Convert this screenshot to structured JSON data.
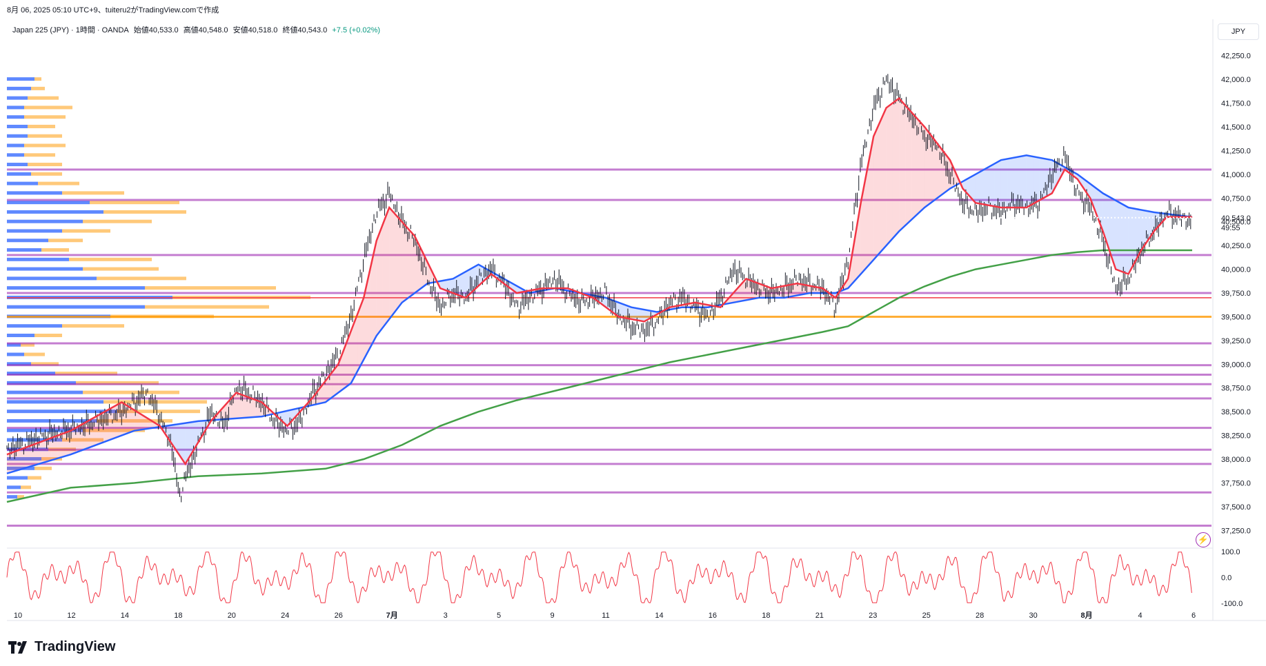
{
  "header": {
    "created_line": "8月 06, 2025 05:10 UTC+9、tuiteru2がTradingView.comで作成",
    "legend": {
      "symbol": "Japan 225 (JPY) · 1時間 · OANDA",
      "open": "始値40,533.0",
      "high": "高値40,548.0",
      "low": "安値40,518.0",
      "close": "終値40,543.0",
      "change": "+7.5 (+0.02%)"
    },
    "currency": "JPY"
  },
  "brand": {
    "name": "TradingView"
  },
  "price_badge": {
    "price": "40,543.0",
    "countdown": "49:55"
  },
  "colors": {
    "fast_ma": "#f23645",
    "mid_ma": "#2962ff",
    "slow_ma": "#43a047",
    "sr_line": "#9c27b0",
    "orange_line": "#ff9800",
    "red_line": "#f23645",
    "vp_up": "#2962ff",
    "vp_down": "#ffb74d",
    "oscillator": "#f23645"
  },
  "chart_data": {
    "type": "line",
    "title": "",
    "x_ticks": [
      "10",
      "12",
      "14",
      "18",
      "20",
      "24",
      "26",
      "7月",
      "3",
      "5",
      "9",
      "11",
      "14",
      "16",
      "18",
      "21",
      "23",
      "25",
      "28",
      "30",
      "8月",
      "4",
      "6"
    ],
    "y_ticks": [
      "42,250.0",
      "42,000.0",
      "41,750.0",
      "41,500.0",
      "41,250.0",
      "41,000.0",
      "40,750.0",
      "40,500.0",
      "40,250.0",
      "40,000.0",
      "39,750.0",
      "39,500.0",
      "39,250.0",
      "39,000.0",
      "38,750.0",
      "38,500.0",
      "38,250.0",
      "38,000.0",
      "37,750.0",
      "37,500.0",
      "37,250.0"
    ],
    "ylim": [
      37100,
      42400
    ],
    "price_path": [
      [
        0,
        38100
      ],
      [
        3,
        38250
      ],
      [
        6,
        38350
      ],
      [
        9,
        38500
      ],
      [
        11,
        38700
      ],
      [
        12,
        38450
      ],
      [
        13,
        38100
      ],
      [
        13.5,
        37600
      ],
      [
        14,
        37800
      ],
      [
        15,
        38150
      ],
      [
        16,
        38500
      ],
      [
        17,
        38350
      ],
      [
        18,
        38750
      ],
      [
        19,
        38700
      ],
      [
        20,
        38600
      ],
      [
        21,
        38400
      ],
      [
        22,
        38300
      ],
      [
        23,
        38400
      ],
      [
        24,
        38700
      ],
      [
        25,
        38900
      ],
      [
        26,
        39100
      ],
      [
        27,
        39500
      ],
      [
        28,
        40100
      ],
      [
        29,
        40600
      ],
      [
        30,
        40800
      ],
      [
        31,
        40500
      ],
      [
        32,
        40300
      ],
      [
        33,
        39900
      ],
      [
        34,
        39600
      ],
      [
        35,
        39750
      ],
      [
        36,
        39700
      ],
      [
        37,
        39900
      ],
      [
        38,
        40000
      ],
      [
        39,
        39850
      ],
      [
        40,
        39600
      ],
      [
        41,
        39700
      ],
      [
        42,
        39800
      ],
      [
        43,
        39900
      ],
      [
        44,
        39750
      ],
      [
        45,
        39650
      ],
      [
        46,
        39700
      ],
      [
        47,
        39750
      ],
      [
        48,
        39500
      ],
      [
        49,
        39400
      ],
      [
        50,
        39350
      ],
      [
        51,
        39450
      ],
      [
        52,
        39650
      ],
      [
        53,
        39700
      ],
      [
        54,
        39600
      ],
      [
        55,
        39500
      ],
      [
        56,
        39700
      ],
      [
        57,
        40000
      ],
      [
        58,
        39900
      ],
      [
        59,
        39800
      ],
      [
        60,
        39750
      ],
      [
        61,
        39800
      ],
      [
        62,
        39900
      ],
      [
        63,
        39850
      ],
      [
        64,
        39800
      ],
      [
        65,
        39600
      ],
      [
        66,
        40100
      ],
      [
        67,
        41100
      ],
      [
        68,
        41700
      ],
      [
        69,
        42000
      ],
      [
        70,
        41800
      ],
      [
        71,
        41600
      ],
      [
        72,
        41400
      ],
      [
        73,
        41300
      ],
      [
        74,
        41000
      ],
      [
        75,
        40700
      ],
      [
        76,
        40600
      ],
      [
        77,
        40650
      ],
      [
        78,
        40600
      ],
      [
        79,
        40700
      ],
      [
        80,
        40650
      ],
      [
        81,
        40700
      ],
      [
        82,
        41000
      ],
      [
        83,
        41200
      ],
      [
        84,
        40800
      ],
      [
        85,
        40650
      ],
      [
        86,
        40300
      ],
      [
        87,
        39800
      ],
      [
        88,
        39900
      ],
      [
        89,
        40200
      ],
      [
        90,
        40400
      ],
      [
        91,
        40600
      ],
      [
        92,
        40550
      ],
      [
        93,
        40500
      ]
    ],
    "series": [
      {
        "values": [
          [
            0,
            38050
          ],
          [
            5,
            38300
          ],
          [
            9,
            38600
          ],
          [
            12,
            38350
          ],
          [
            14,
            37950
          ],
          [
            16,
            38400
          ],
          [
            18,
            38700
          ],
          [
            20,
            38600
          ],
          [
            22,
            38350
          ],
          [
            24,
            38650
          ],
          [
            26,
            39000
          ],
          [
            28,
            39700
          ],
          [
            29,
            40300
          ],
          [
            30,
            40650
          ],
          [
            32,
            40350
          ],
          [
            34,
            39800
          ],
          [
            36,
            39700
          ],
          [
            38,
            39950
          ],
          [
            40,
            39750
          ],
          [
            42,
            39800
          ],
          [
            44,
            39800
          ],
          [
            46,
            39700
          ],
          [
            48,
            39500
          ],
          [
            50,
            39450
          ],
          [
            52,
            39600
          ],
          [
            54,
            39650
          ],
          [
            56,
            39600
          ],
          [
            58,
            39900
          ],
          [
            60,
            39800
          ],
          [
            62,
            39850
          ],
          [
            64,
            39800
          ],
          [
            65,
            39700
          ],
          [
            66,
            39900
          ],
          [
            67,
            40700
          ],
          [
            68,
            41400
          ],
          [
            69,
            41700
          ],
          [
            70,
            41800
          ],
          [
            72,
            41500
          ],
          [
            74,
            41150
          ],
          [
            75,
            40850
          ],
          [
            76,
            40700
          ],
          [
            78,
            40650
          ],
          [
            80,
            40650
          ],
          [
            82,
            40800
          ],
          [
            83,
            41050
          ],
          [
            84,
            40950
          ],
          [
            85,
            40750
          ],
          [
            86,
            40400
          ],
          [
            87,
            40000
          ],
          [
            88,
            39950
          ],
          [
            89,
            40200
          ],
          [
            90,
            40400
          ],
          [
            91,
            40550
          ],
          [
            93,
            40550
          ]
        ]
      },
      {
        "values": [
          [
            0,
            37850
          ],
          [
            5,
            38050
          ],
          [
            10,
            38300
          ],
          [
            15,
            38400
          ],
          [
            20,
            38450
          ],
          [
            25,
            38600
          ],
          [
            27,
            38800
          ],
          [
            29,
            39300
          ],
          [
            31,
            39650
          ],
          [
            33,
            39850
          ],
          [
            35,
            39900
          ],
          [
            37,
            40050
          ],
          [
            39,
            39900
          ],
          [
            41,
            39750
          ],
          [
            43,
            39800
          ],
          [
            45,
            39750
          ],
          [
            47,
            39700
          ],
          [
            49,
            39600
          ],
          [
            51,
            39550
          ],
          [
            53,
            39600
          ],
          [
            55,
            39600
          ],
          [
            57,
            39650
          ],
          [
            59,
            39700
          ],
          [
            61,
            39700
          ],
          [
            63,
            39750
          ],
          [
            65,
            39750
          ],
          [
            66,
            39800
          ],
          [
            68,
            40100
          ],
          [
            70,
            40400
          ],
          [
            72,
            40650
          ],
          [
            74,
            40850
          ],
          [
            76,
            41000
          ],
          [
            78,
            41150
          ],
          [
            80,
            41200
          ],
          [
            82,
            41150
          ],
          [
            84,
            41000
          ],
          [
            86,
            40800
          ],
          [
            88,
            40650
          ],
          [
            90,
            40600
          ],
          [
            93,
            40550
          ]
        ]
      },
      {
        "values": [
          [
            0,
            37550
          ],
          [
            5,
            37700
          ],
          [
            10,
            37750
          ],
          [
            15,
            37820
          ],
          [
            20,
            37850
          ],
          [
            25,
            37900
          ],
          [
            28,
            38000
          ],
          [
            31,
            38150
          ],
          [
            34,
            38350
          ],
          [
            37,
            38500
          ],
          [
            40,
            38620
          ],
          [
            43,
            38720
          ],
          [
            46,
            38820
          ],
          [
            49,
            38920
          ],
          [
            52,
            39020
          ],
          [
            55,
            39100
          ],
          [
            58,
            39180
          ],
          [
            61,
            39260
          ],
          [
            64,
            39340
          ],
          [
            66,
            39400
          ],
          [
            68,
            39550
          ],
          [
            70,
            39700
          ],
          [
            72,
            39820
          ],
          [
            74,
            39920
          ],
          [
            76,
            40000
          ],
          [
            78,
            40050
          ],
          [
            80,
            40100
          ],
          [
            82,
            40150
          ],
          [
            84,
            40180
          ],
          [
            86,
            40200
          ],
          [
            88,
            40200
          ],
          [
            90,
            40200
          ],
          [
            93,
            40200
          ]
        ]
      }
    ],
    "horizontal_lines": {
      "purple": [
        41050,
        40730,
        40150,
        39750,
        39220,
        38990,
        38890,
        38790,
        38640,
        38330,
        38100,
        37950,
        37650,
        37300
      ],
      "red": [
        39700
      ],
      "orange": [
        39500
      ]
    },
    "oscillator": {
      "ylim": [
        -100,
        100
      ],
      "ticks": [
        "100.0",
        "0.0",
        "-100.0"
      ]
    },
    "volume_profile": [
      [
        42000,
        40,
        10
      ],
      [
        41900,
        35,
        20
      ],
      [
        41800,
        30,
        45
      ],
      [
        41700,
        25,
        70
      ],
      [
        41600,
        25,
        60
      ],
      [
        41500,
        30,
        40
      ],
      [
        41400,
        30,
        50
      ],
      [
        41300,
        25,
        60
      ],
      [
        41200,
        25,
        45
      ],
      [
        41100,
        30,
        50
      ],
      [
        41000,
        35,
        45
      ],
      [
        40900,
        45,
        60
      ],
      [
        40800,
        80,
        90
      ],
      [
        40700,
        120,
        130
      ],
      [
        40600,
        140,
        120
      ],
      [
        40500,
        110,
        100
      ],
      [
        40400,
        80,
        70
      ],
      [
        40300,
        60,
        50
      ],
      [
        40200,
        50,
        40
      ],
      [
        40100,
        90,
        120
      ],
      [
        40000,
        110,
        110
      ],
      [
        39900,
        130,
        130
      ],
      [
        39800,
        200,
        190
      ],
      [
        39700,
        240,
        200
      ],
      [
        39600,
        200,
        180
      ],
      [
        39500,
        150,
        150
      ],
      [
        39400,
        80,
        90
      ],
      [
        39300,
        40,
        40
      ],
      [
        39200,
        20,
        20
      ],
      [
        39100,
        25,
        30
      ],
      [
        39000,
        35,
        40
      ],
      [
        38900,
        70,
        90
      ],
      [
        38800,
        100,
        120
      ],
      [
        38700,
        110,
        140
      ],
      [
        38600,
        140,
        150
      ],
      [
        38500,
        160,
        120
      ],
      [
        38400,
        130,
        110
      ],
      [
        38300,
        110,
        90
      ],
      [
        38200,
        80,
        60
      ],
      [
        38100,
        60,
        40
      ],
      [
        38000,
        50,
        30
      ],
      [
        37900,
        40,
        25
      ],
      [
        37800,
        30,
        20
      ],
      [
        37700,
        20,
        15
      ],
      [
        37600,
        15,
        10
      ]
    ]
  }
}
